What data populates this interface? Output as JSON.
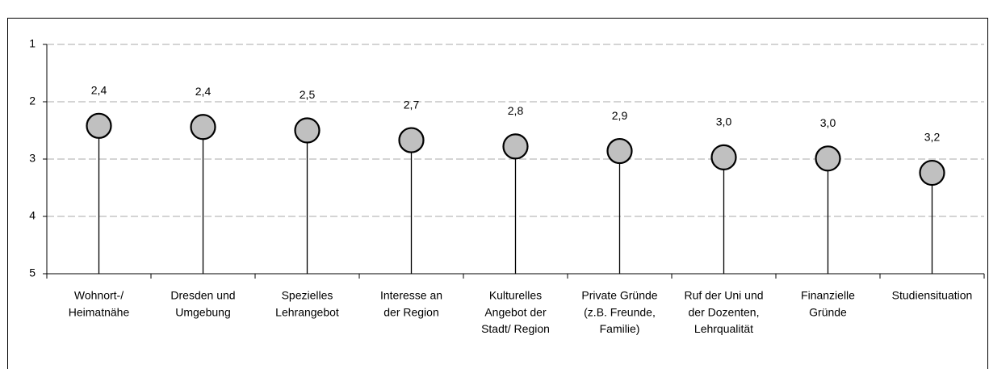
{
  "chart_data": {
    "type": "lollipop",
    "categories": [
      [
        "Wohnort-/",
        "Heimatnähe"
      ],
      [
        "Dresden und",
        "Umgebung"
      ],
      [
        "Spezielles",
        "Lehrangebot"
      ],
      [
        "Interesse an",
        "der Region"
      ],
      [
        "Kulturelles",
        "Angebot der",
        "Stadt/ Region"
      ],
      [
        "Private Gründe",
        "(z.B. Freunde,",
        "Familie)"
      ],
      [
        "Ruf der Uni und",
        "der Dozenten,",
        "Lehrqualität"
      ],
      [
        "Finanzielle",
        "Gründe"
      ],
      [
        "Studiensituation"
      ]
    ],
    "values": [
      2.42,
      2.44,
      2.5,
      2.67,
      2.78,
      2.86,
      2.97,
      2.99,
      3.24
    ],
    "value_labels": [
      "2,4",
      "2,4",
      "2,5",
      "2,7",
      "2,8",
      "2,9",
      "3,0",
      "3,0",
      "3,2"
    ],
    "color": "#c0c0c0",
    "ylim": [
      1,
      5
    ],
    "yticks": [
      1,
      2,
      3,
      4,
      5
    ],
    "y_reversed": true,
    "grid": true
  }
}
